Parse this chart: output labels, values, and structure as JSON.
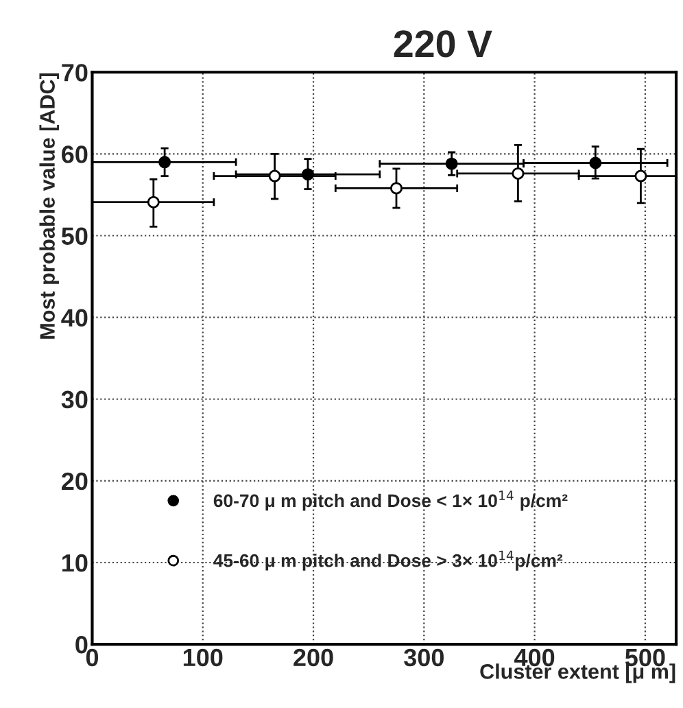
{
  "chart_data": {
    "type": "scatter",
    "title": "220 V",
    "xlabel": "Cluster extent [μ m]",
    "ylabel": "Most probable value [ADC]",
    "xlim": [
      0,
      528
    ],
    "ylim": [
      0,
      70
    ],
    "xticks": [
      0,
      100,
      200,
      300,
      400,
      500
    ],
    "yticks": [
      0,
      10,
      20,
      30,
      40,
      50,
      60,
      70
    ],
    "grid": true,
    "legend": "bottom left",
    "marker": "circle",
    "series": [
      {
        "name": "60-70 μ m pitch and Dose < 1× 10$^{14}$ p/cm²",
        "color": "#000000",
        "x": [
          65.5,
          195,
          325,
          455
        ],
        "values": [
          59.0,
          57.5,
          58.8,
          58.9
        ],
        "errors": [
          [
            57.3,
            60.7
          ],
          [
            55.7,
            59.4
          ],
          [
            57.4,
            60.2
          ],
          [
            57.0,
            60.9
          ]
        ],
        "xerrors": [
          [
            0,
            130
          ],
          [
            130,
            260
          ],
          [
            260,
            390
          ],
          [
            390,
            520
          ]
        ]
      },
      {
        "name": "45-60 μ m pitch and Dose > 3× 10$^{14}$p/cm²",
        "color": "#000000",
        "marker": "circle_open",
        "x": [
          55.4,
          165,
          275,
          385,
          496
        ],
        "values": [
          54.1,
          57.3,
          55.8,
          57.6,
          57.3
        ],
        "errors": [
          [
            51.1,
            56.9
          ],
          [
            54.5,
            60.0
          ],
          [
            53.4,
            58.2
          ],
          [
            54.2,
            61.1
          ],
          [
            54.0,
            60.6
          ]
        ],
        "xerrors": [
          [
            0,
            110
          ],
          [
            110,
            220
          ],
          [
            220,
            330
          ],
          [
            330,
            440
          ],
          [
            440,
            528
          ]
        ]
      }
    ]
  }
}
